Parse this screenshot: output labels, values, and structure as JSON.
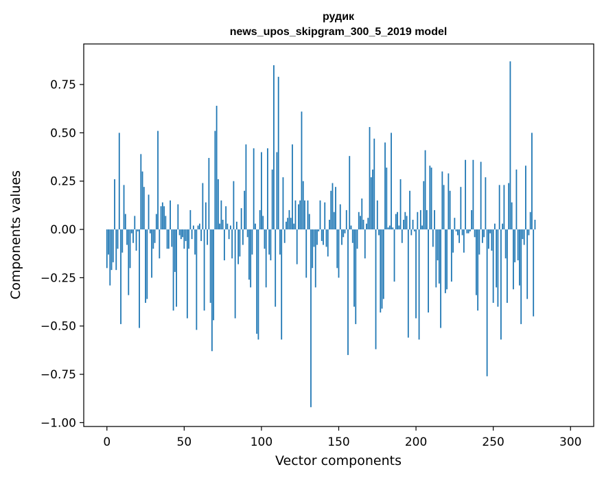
{
  "chart_data": {
    "type": "bar",
    "title_lines": [
      "рудик",
      "news_upos_skipgram_300_5_2019 model"
    ],
    "xlabel": "Vector components",
    "ylabel": "Components values",
    "xlim": [
      -15,
      315
    ],
    "ylim": [
      -1.02,
      0.96
    ],
    "x_ticks": [
      0,
      50,
      100,
      150,
      200,
      250,
      300
    ],
    "x_tick_labels": [
      "0",
      "50",
      "100",
      "150",
      "200",
      "250",
      "300"
    ],
    "y_ticks": [
      0.75,
      0.5,
      0.25,
      0.0,
      -0.25,
      -0.5,
      -0.75,
      -1.0
    ],
    "y_tick_labels": [
      "0.75",
      "0.50",
      "0.25",
      "0.00",
      "−0.25",
      "−0.50",
      "−0.75",
      "−1.00"
    ],
    "bar_color": "#1f77b4",
    "values": [
      -0.2,
      -0.13,
      -0.29,
      -0.21,
      -0.17,
      0.26,
      -0.21,
      -0.1,
      0.5,
      -0.49,
      -0.12,
      0.23,
      0.08,
      -0.08,
      -0.34,
      -0.2,
      -0.02,
      -0.07,
      0.07,
      -0.11,
      -0.01,
      -0.51,
      0.39,
      0.3,
      0.22,
      -0.38,
      -0.36,
      0.18,
      -0.02,
      -0.25,
      -0.1,
      -0.07,
      0.08,
      0.51,
      -0.15,
      0.12,
      0.14,
      0.12,
      0.07,
      -0.1,
      -0.1,
      0.15,
      -0.09,
      -0.42,
      -0.22,
      -0.4,
      0.13,
      -0.03,
      -0.05,
      -0.04,
      -0.1,
      -0.06,
      -0.46,
      -0.1,
      0.1,
      -0.05,
      0.02,
      -0.13,
      -0.52,
      0.02,
      0.03,
      -0.06,
      0.24,
      -0.42,
      0.14,
      -0.08,
      0.37,
      -0.38,
      -0.63,
      -0.47,
      0.51,
      0.64,
      0.26,
      0.03,
      0.15,
      0.05,
      -0.16,
      0.12,
      0.03,
      -0.05,
      0.02,
      -0.15,
      0.25,
      -0.46,
      0.04,
      -0.18,
      -0.14,
      0.11,
      -0.08,
      0.2,
      0.44,
      -0.04,
      -0.26,
      -0.3,
      -0.13,
      0.42,
      0.03,
      -0.54,
      -0.57,
      0.1,
      0.4,
      0.07,
      -0.1,
      -0.3,
      0.42,
      -0.13,
      -0.16,
      0.31,
      0.85,
      -0.4,
      0.4,
      0.79,
      -0.13,
      -0.57,
      0.27,
      -0.07,
      0.04,
      0.06,
      0.1,
      0.06,
      0.44,
      0.03,
      0.15,
      -0.18,
      0.13,
      0.15,
      0.61,
      0.25,
      0.15,
      -0.25,
      0.15,
      0.08,
      -0.92,
      -0.2,
      -0.09,
      -0.3,
      -0.08,
      -0.01,
      0.15,
      -0.06,
      -0.08,
      0.14,
      -0.09,
      -0.14,
      0.05,
      0.2,
      0.24,
      0.09,
      0.22,
      -0.2,
      -0.25,
      0.13,
      -0.08,
      -0.04,
      -0.02,
      0.1,
      -0.65,
      0.38,
      0.02,
      -0.07,
      -0.4,
      -0.49,
      -0.1,
      0.09,
      0.07,
      0.16,
      0.05,
      -0.15,
      0.03,
      0.06,
      0.53,
      0.27,
      0.31,
      0.47,
      -0.62,
      0.15,
      -0.03,
      -0.43,
      -0.41,
      -0.36,
      0.45,
      0.32,
      0.01,
      0.02,
      0.5,
      0.01,
      -0.27,
      0.08,
      0.09,
      0.02,
      0.26,
      -0.07,
      0.05,
      0.09,
      0.07,
      -0.56,
      0.2,
      -0.03,
      0.05,
      -0.01,
      -0.46,
      0.09,
      -0.57,
      0.1,
      0.02,
      0.25,
      0.41,
      0.1,
      -0.43,
      0.33,
      0.32,
      -0.09,
      0.1,
      -0.3,
      -0.16,
      -0.28,
      -0.51,
      0.3,
      0.23,
      -0.33,
      -0.31,
      0.29,
      0.2,
      -0.27,
      -0.12,
      0.06,
      -0.01,
      -0.03,
      -0.07,
      0.22,
      -0.03,
      -0.12,
      0.36,
      -0.02,
      -0.02,
      -0.01,
      0.1,
      0.36,
      -0.04,
      -0.34,
      -0.42,
      -0.13,
      0.35,
      -0.07,
      -0.04,
      0.27,
      -0.76,
      -0.1,
      -0.02,
      -0.11,
      -0.38,
      0.03,
      -0.3,
      -0.4,
      0.23,
      -0.57,
      0.03,
      0.23,
      -0.15,
      -0.38,
      0.24,
      0.87,
      0.14,
      -0.31,
      -0.17,
      0.31,
      -0.16,
      -0.29,
      -0.49,
      -0.05,
      -0.08,
      0.33,
      -0.36,
      -0.03,
      0.09,
      0.5,
      -0.45,
      0.05
    ]
  }
}
